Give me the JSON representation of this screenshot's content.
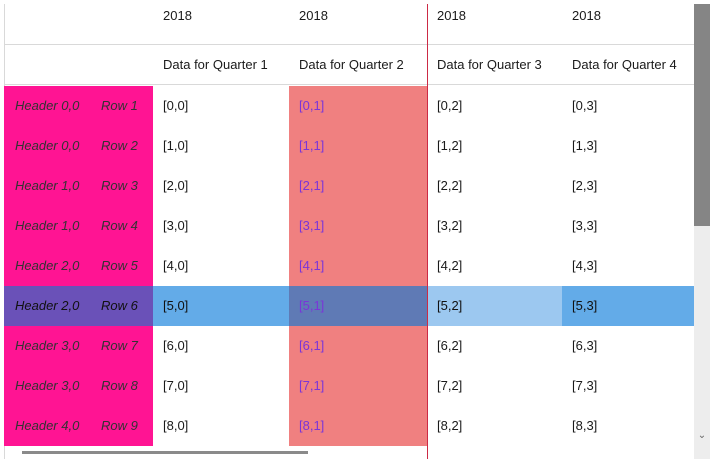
{
  "column_groups": [
    "2018",
    "2018",
    "2018",
    "2018"
  ],
  "column_headers": [
    "Data for Quarter 1",
    "Data for Quarter 2",
    "Data for Quarter 3",
    "Data for Quarter 4"
  ],
  "rows": [
    {
      "h1": "Header 0,0",
      "h2": "Row 1",
      "cells": [
        "[0,0]",
        "[0,1]",
        "[0,2]",
        "[0,3]"
      ]
    },
    {
      "h1": "Header 0,0",
      "h2": "Row 2",
      "cells": [
        "[1,0]",
        "[1,1]",
        "[1,2]",
        "[1,3]"
      ]
    },
    {
      "h1": "Header 1,0",
      "h2": "Row 3",
      "cells": [
        "[2,0]",
        "[2,1]",
        "[2,2]",
        "[2,3]"
      ]
    },
    {
      "h1": "Header 1,0",
      "h2": "Row 4",
      "cells": [
        "[3,0]",
        "[3,1]",
        "[3,2]",
        "[3,3]"
      ]
    },
    {
      "h1": "Header 2,0",
      "h2": "Row 5",
      "cells": [
        "[4,0]",
        "[4,1]",
        "[4,2]",
        "[4,3]"
      ]
    },
    {
      "h1": "Header 2,0",
      "h2": "Row 6",
      "cells": [
        "[5,0]",
        "[5,1]",
        "[5,2]",
        "[5,3]"
      ]
    },
    {
      "h1": "Header 3,0",
      "h2": "Row 7",
      "cells": [
        "[6,0]",
        "[6,1]",
        "[6,2]",
        "[6,3]"
      ]
    },
    {
      "h1": "Header 3,0",
      "h2": "Row 8",
      "cells": [
        "[7,0]",
        "[7,1]",
        "[7,2]",
        "[7,3]"
      ]
    },
    {
      "h1": "Header 4,0",
      "h2": "Row 9",
      "cells": [
        "[8,0]",
        "[8,1]",
        "[8,2]",
        "[8,3]"
      ]
    }
  ],
  "selected_row_index": 5,
  "colors": {
    "row_header_bg": "#ff1493",
    "highlight_column_bg": "#f08080",
    "highlight_column_text": "#7b35d8",
    "selection_bg": "#63abe8",
    "freeze_line": "#cc2a45"
  },
  "icons": {
    "scroll_down": "chevron-down-icon"
  }
}
